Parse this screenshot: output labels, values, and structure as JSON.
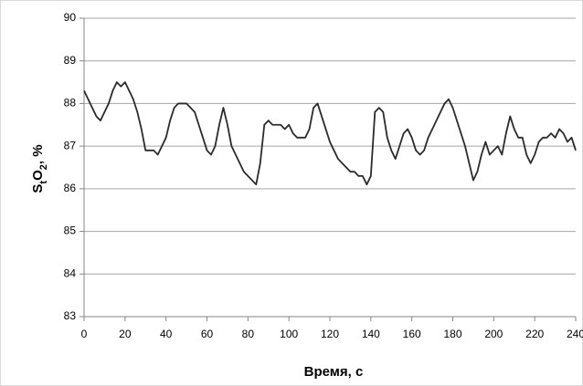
{
  "chart_data": {
    "type": "line",
    "x_label": "Время, с",
    "y_label": [
      {
        "text": "S"
      },
      {
        "text": "t",
        "sub": true
      },
      {
        "text": "O"
      },
      {
        "text": "2",
        "sub": true
      },
      {
        "text": ", %"
      }
    ],
    "x": [
      0,
      2,
      4,
      6,
      8,
      10,
      12,
      14,
      16,
      18,
      20,
      22,
      24,
      26,
      28,
      30,
      32,
      34,
      36,
      38,
      40,
      42,
      44,
      46,
      48,
      50,
      52,
      54,
      56,
      58,
      60,
      62,
      64,
      66,
      68,
      70,
      72,
      74,
      76,
      78,
      80,
      82,
      84,
      86,
      88,
      90,
      92,
      94,
      96,
      98,
      100,
      102,
      104,
      106,
      108,
      110,
      112,
      114,
      116,
      118,
      120,
      122,
      124,
      126,
      128,
      130,
      132,
      134,
      136,
      138,
      140,
      142,
      144,
      146,
      148,
      150,
      152,
      154,
      156,
      158,
      160,
      162,
      164,
      166,
      168,
      170,
      172,
      174,
      176,
      178,
      180,
      182,
      184,
      186,
      188,
      190,
      192,
      194,
      196,
      198,
      200,
      202,
      204,
      206,
      208,
      210,
      212,
      214,
      216,
      218,
      220,
      222,
      224,
      226,
      228,
      230,
      232,
      234,
      236,
      238,
      240
    ],
    "series": [
      {
        "color": "#2b2b2b",
        "values": [
          88.3,
          88.1,
          87.9,
          87.7,
          87.6,
          87.8,
          88.0,
          88.3,
          88.5,
          88.4,
          88.5,
          88.3,
          88.1,
          87.8,
          87.4,
          86.9,
          86.9,
          86.9,
          86.8,
          87.0,
          87.2,
          87.6,
          87.9,
          88.0,
          88.0,
          88.0,
          87.9,
          87.8,
          87.5,
          87.2,
          86.9,
          86.8,
          87.0,
          87.5,
          87.9,
          87.5,
          87.0,
          86.8,
          86.6,
          86.4,
          86.3,
          86.2,
          86.1,
          86.6,
          87.5,
          87.6,
          87.5,
          87.5,
          87.5,
          87.4,
          87.5,
          87.3,
          87.2,
          87.2,
          87.2,
          87.4,
          87.9,
          88.0,
          87.7,
          87.4,
          87.1,
          86.9,
          86.7,
          86.6,
          86.5,
          86.4,
          86.4,
          86.3,
          86.3,
          86.1,
          86.3,
          87.8,
          87.9,
          87.8,
          87.2,
          86.9,
          86.7,
          87.0,
          87.3,
          87.4,
          87.2,
          86.9,
          86.8,
          86.9,
          87.2,
          87.4,
          87.6,
          87.8,
          88.0,
          88.1,
          87.9,
          87.6,
          87.3,
          87.0,
          86.6,
          86.2,
          86.4,
          86.8,
          87.1,
          86.8,
          86.9,
          87.0,
          86.8,
          87.3,
          87.7,
          87.4,
          87.2,
          87.2,
          86.8,
          86.6,
          86.8,
          87.1,
          87.2,
          87.2,
          87.3,
          87.2,
          87.4,
          87.3,
          87.1,
          87.2,
          86.9
        ]
      }
    ],
    "xlim": [
      0,
      240
    ],
    "xticks": [
      0,
      20,
      40,
      60,
      80,
      100,
      120,
      140,
      160,
      180,
      200,
      220,
      240
    ],
    "ylim": [
      83,
      90
    ],
    "yticks": [
      83,
      84,
      85,
      86,
      87,
      88,
      89,
      90
    ],
    "grid": true
  }
}
